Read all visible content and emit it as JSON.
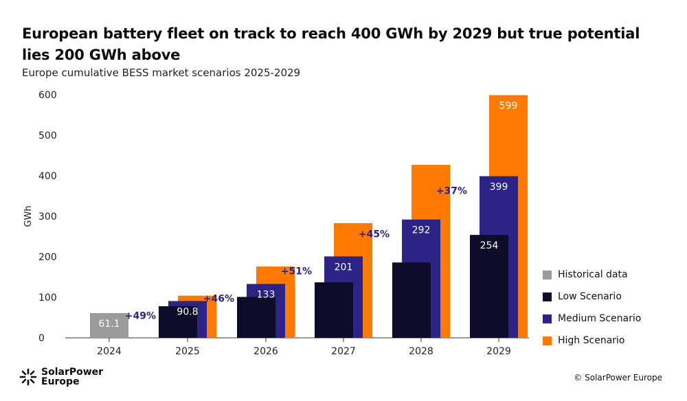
{
  "header": {
    "title": "European battery fleet on track to reach 400 GWh by 2029 but true potential lies 200 GWh above",
    "subtitle": "Europe cumulative BESS market scenarios 2025-2029"
  },
  "chart_data": {
    "type": "bar",
    "title": "European battery fleet on track to reach 400 GWh by 2029 but true potential lies 200 GWh above",
    "subtitle": "Europe cumulative BESS market scenarios 2025-2029",
    "ylabel": "GWh",
    "xlabel": "",
    "ylim": [
      0,
      600
    ],
    "yticks": [
      0,
      100,
      200,
      300,
      400,
      500,
      600
    ],
    "grid": false,
    "legend_position": "right",
    "categories": [
      "2024",
      "2025",
      "2026",
      "2027",
      "2028",
      "2029"
    ],
    "series": [
      {
        "name": "Historical data",
        "color": "#9b9b9b",
        "values": [
          61.1,
          null,
          null,
          null,
          null,
          null
        ]
      },
      {
        "name": "Low Scenario",
        "color": "#0d0b2a",
        "values": [
          null,
          78,
          101,
          137,
          186,
          254
        ]
      },
      {
        "name": "Medium Scenario",
        "color": "#2b2385",
        "values": [
          null,
          90.8,
          133,
          201,
          292,
          399
        ]
      },
      {
        "name": "High Scenario",
        "color": "#ff7a00",
        "values": [
          null,
          104,
          176,
          283,
          427,
          599
        ]
      }
    ],
    "data_labels": [
      {
        "category": "2024",
        "series": "Historical data",
        "text": "61.1"
      },
      {
        "category": "2025",
        "series": "Medium Scenario",
        "text": "90.8"
      },
      {
        "category": "2026",
        "series": "Medium Scenario",
        "text": "133"
      },
      {
        "category": "2027",
        "series": "Medium Scenario",
        "text": "201"
      },
      {
        "category": "2028",
        "series": "Medium Scenario",
        "text": "292"
      },
      {
        "category": "2029",
        "series": "Medium Scenario",
        "text": "399"
      },
      {
        "category": "2029",
        "series": "Low Scenario",
        "text": "254"
      },
      {
        "category": "2029",
        "series": "High Scenario",
        "text": "599"
      }
    ],
    "growth_annotations": [
      {
        "category": "2025",
        "text": "+49%"
      },
      {
        "category": "2026",
        "text": "+46%"
      },
      {
        "category": "2027",
        "text": "+51%"
      },
      {
        "category": "2028",
        "text": "+45%"
      },
      {
        "category": "2029",
        "text": "+37%"
      }
    ]
  },
  "footer": {
    "logo_line1": "SolarPower",
    "logo_line2": "Europe",
    "copyright": "© SolarPower Europe"
  }
}
